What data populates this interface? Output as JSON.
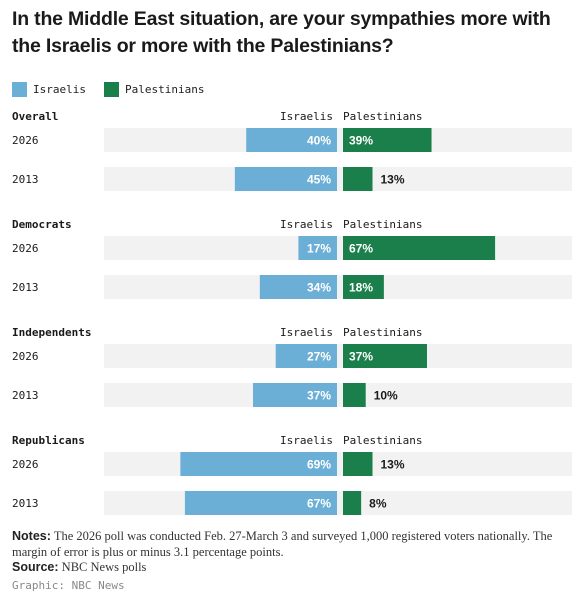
{
  "title": "In the Middle East situation, are your sympathies more with the Israelis or more with the Palestinians?",
  "legend": [
    {
      "label": "Israelis",
      "color": "#6baed6"
    },
    {
      "label": "Palestinians",
      "color": "#1a7f4b"
    }
  ],
  "chart_data": {
    "type": "bar",
    "layout": "diverging-horizontal",
    "column_labels": {
      "left": "Israelis",
      "right": "Palestinians"
    },
    "colors": {
      "Israelis": "#6baed6",
      "Palestinians": "#1a7f4b",
      "track": "#f2f2f2"
    },
    "max": 100,
    "groups": [
      {
        "name": "Overall",
        "rows": [
          {
            "year": "2026",
            "israelis": 40,
            "palestinians": 39
          },
          {
            "year": "2013",
            "israelis": 45,
            "palestinians": 13
          }
        ]
      },
      {
        "name": "Democrats",
        "rows": [
          {
            "year": "2026",
            "israelis": 17,
            "palestinians": 67
          },
          {
            "year": "2013",
            "israelis": 34,
            "palestinians": 18
          }
        ]
      },
      {
        "name": "Independents",
        "rows": [
          {
            "year": "2026",
            "israelis": 27,
            "palestinians": 37
          },
          {
            "year": "2013",
            "israelis": 37,
            "palestinians": 10
          }
        ]
      },
      {
        "name": "Republicans",
        "rows": [
          {
            "year": "2026",
            "israelis": 69,
            "palestinians": 13
          },
          {
            "year": "2013",
            "israelis": 67,
            "palestinians": 8
          }
        ]
      }
    ]
  },
  "notes": {
    "label": "Notes:",
    "text": "The 2026 poll was conducted Feb. 27-March 3 and surveyed 1,000 registered voters nationally. The margin of error is plus or minus 3.1 percentage points."
  },
  "source": {
    "label": "Source:",
    "text": "NBC News polls"
  },
  "credit": "Graphic: NBC News"
}
